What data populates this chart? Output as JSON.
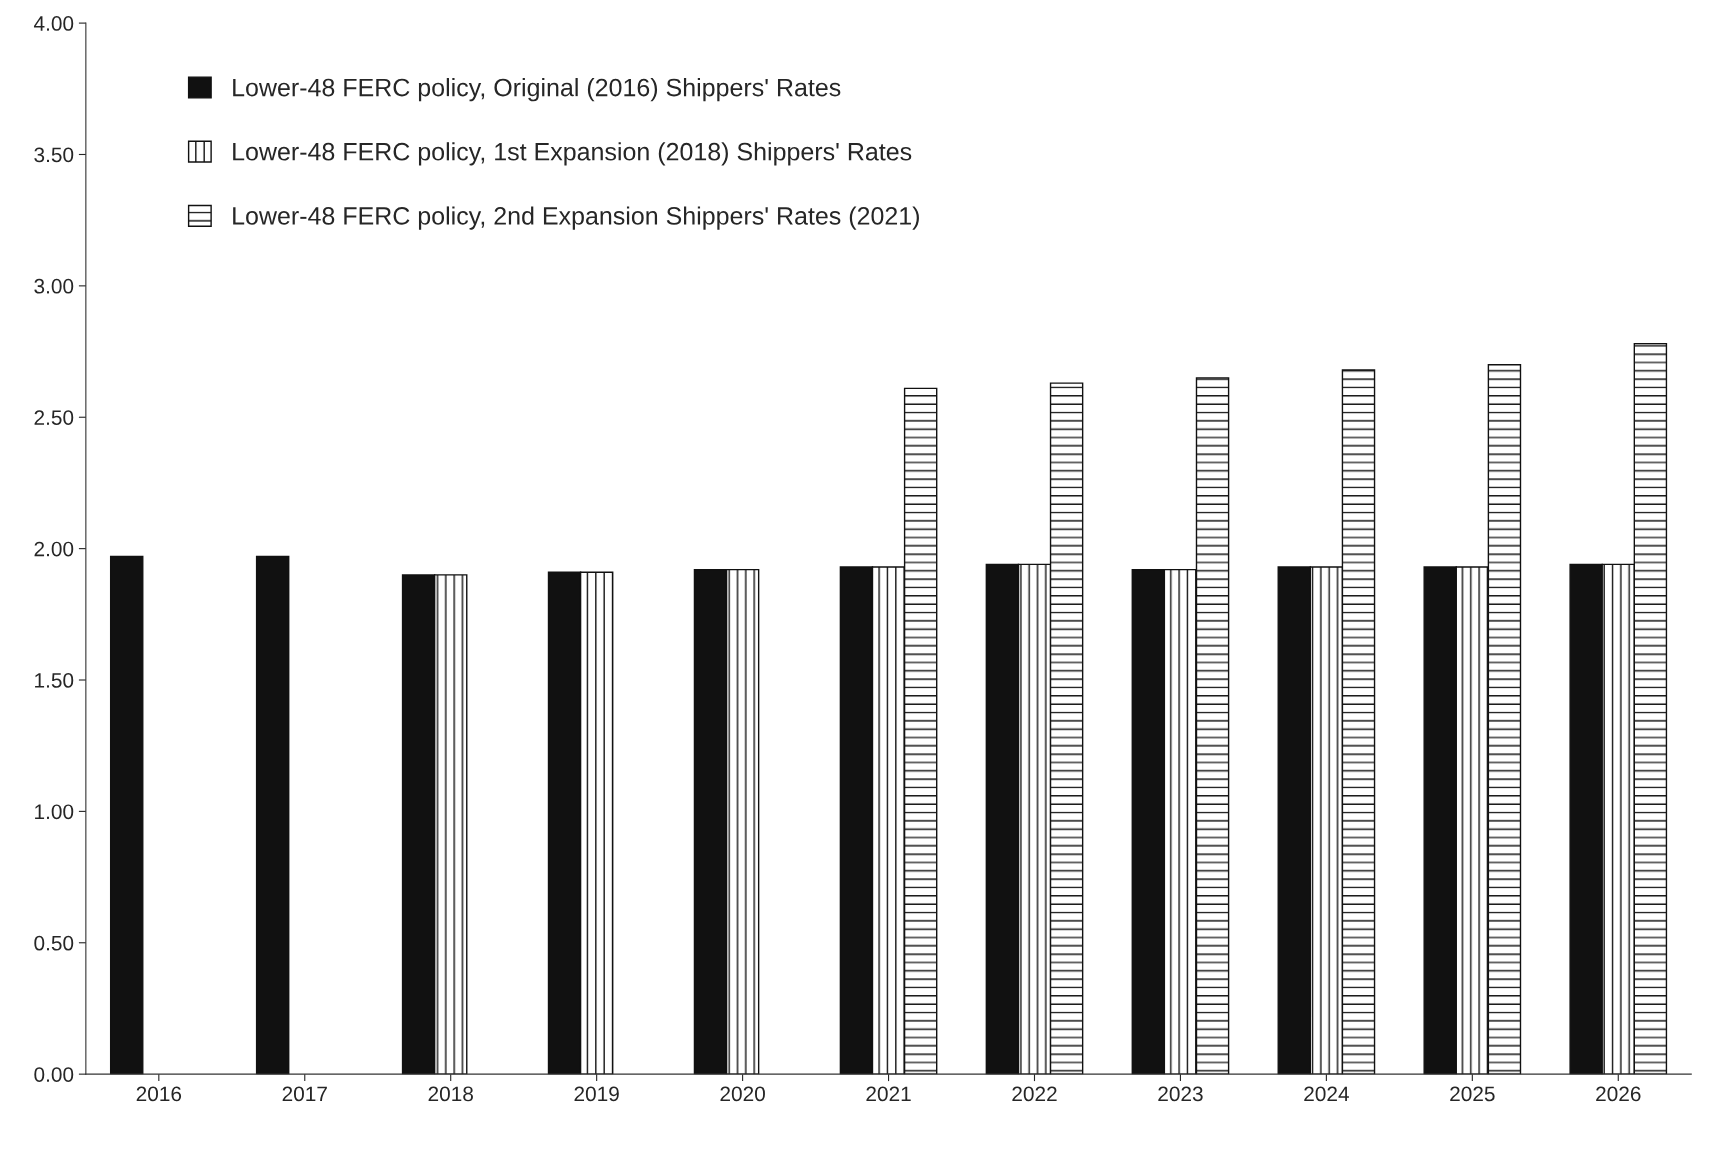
{
  "chart_data": {
    "type": "bar",
    "categories": [
      "2016",
      "2017",
      "2018",
      "2019",
      "2020",
      "2021",
      "2022",
      "2023",
      "2024",
      "2025",
      "2026"
    ],
    "series": [
      {
        "name": "Lower-48 FERC policy, Original (2016) Shippers' Rates",
        "color": "#111111",
        "values": [
          1.97,
          1.97,
          1.9,
          1.91,
          1.92,
          1.93,
          1.94,
          1.92,
          1.93,
          1.93,
          1.94
        ]
      },
      {
        "name": "Lower-48 FERC policy, 1st Expansion (2018) Shippers' Rates",
        "color": "#111111",
        "values": [
          null,
          null,
          1.9,
          1.91,
          1.92,
          1.93,
          1.94,
          1.92,
          1.93,
          1.93,
          1.94
        ]
      },
      {
        "name": "Lower-48 FERC policy, 2nd Expansion Shippers' Rates (2021)",
        "color": "#111111",
        "values": [
          null,
          null,
          null,
          null,
          null,
          2.61,
          2.63,
          2.65,
          2.68,
          2.7,
          2.78
        ]
      }
    ],
    "ylim": [
      0,
      4
    ],
    "yticks": [
      {
        "value": 0,
        "label": "0.00"
      },
      {
        "value": 0.5,
        "label": "0.50"
      },
      {
        "value": 1,
        "label": "1.00"
      },
      {
        "value": 1.5,
        "label": "1.50"
      },
      {
        "value": 2,
        "label": "2.00"
      },
      {
        "value": 2.5,
        "label": "2.50"
      },
      {
        "value": 3,
        "label": "3.00"
      },
      {
        "value": 3.5,
        "label": "3.50"
      },
      {
        "value": 4,
        "label": "4.00"
      }
    ],
    "grid": false,
    "legend": "top left"
  }
}
